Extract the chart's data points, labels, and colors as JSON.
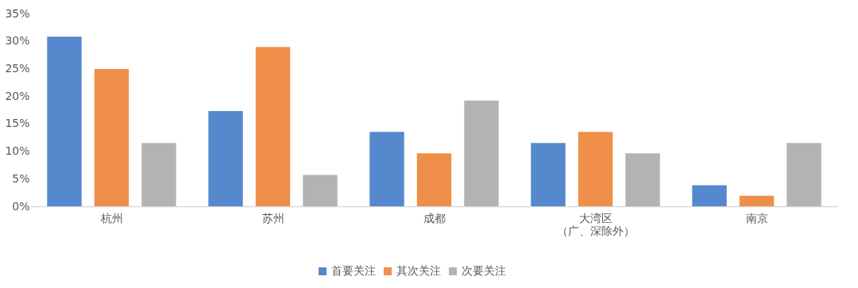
{
  "chart_data": {
    "type": "bar",
    "categories": [
      "杭州",
      "苏州",
      "成都",
      "大湾区（广、深除外）",
      "南京"
    ],
    "series": [
      {
        "name": "首要关注",
        "color": "#5588cc",
        "values": [
          30.8,
          17.3,
          13.5,
          11.5,
          3.8
        ]
      },
      {
        "name": "其次关注",
        "color": "#ef8f49",
        "values": [
          24.9,
          28.9,
          9.6,
          13.5,
          1.9
        ]
      },
      {
        "name": "次要关注",
        "color": "#b3b3b3",
        "values": [
          11.5,
          5.7,
          19.2,
          9.6,
          11.5
        ]
      }
    ],
    "ylim": [
      0,
      35
    ],
    "yticks": [
      {
        "value": 0,
        "label": "0%"
      },
      {
        "value": 5,
        "label": "5%"
      },
      {
        "value": 10,
        "label": "10%"
      },
      {
        "value": 15,
        "label": "15%"
      },
      {
        "value": 20,
        "label": "20%"
      },
      {
        "value": 25,
        "label": "25%"
      },
      {
        "value": 30,
        "label": "30%"
      },
      {
        "value": 35,
        "label": "35%"
      }
    ],
    "grid": false,
    "legend": "bottom"
  }
}
